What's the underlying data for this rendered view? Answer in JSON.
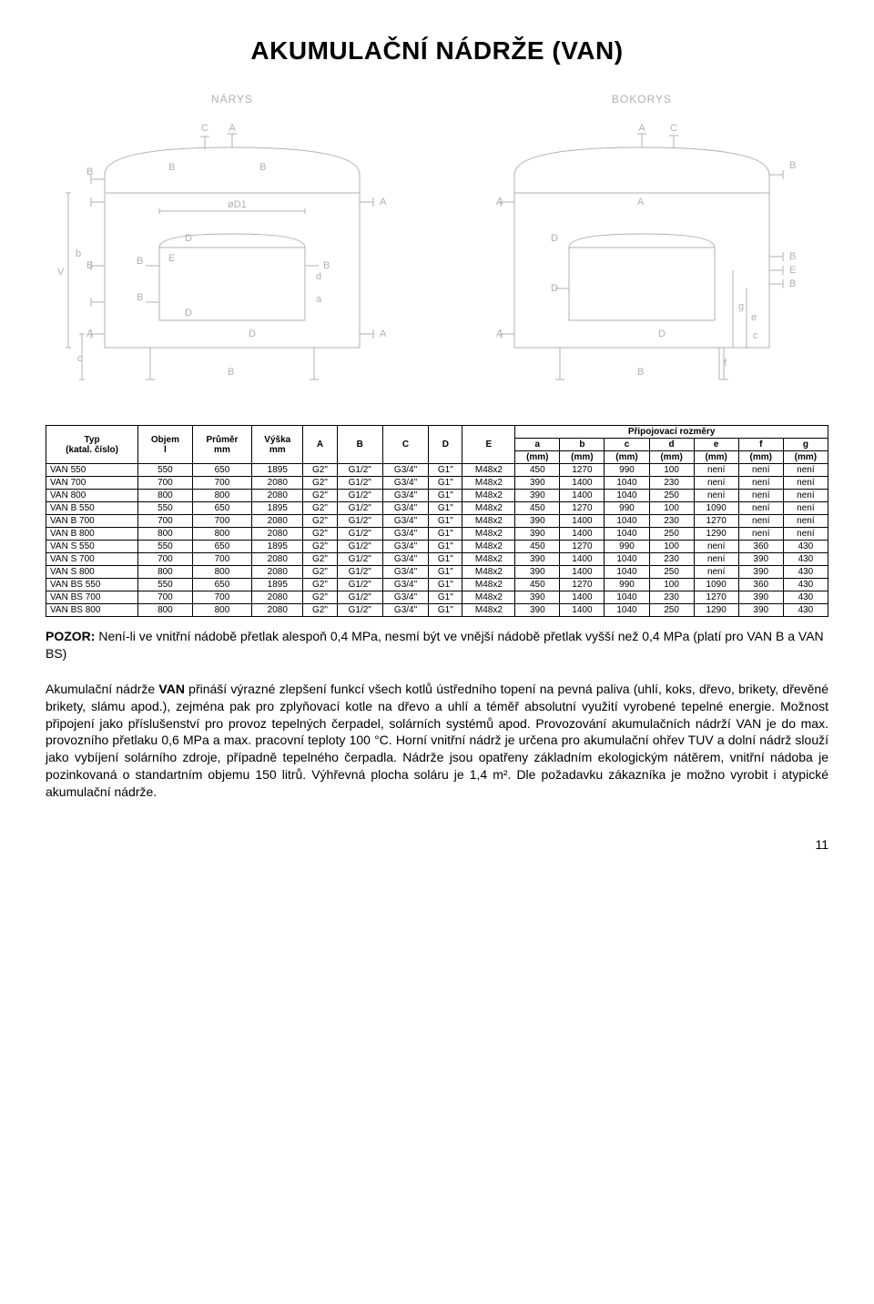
{
  "title": "AKUMULAČNÍ NÁDRŽE (VAN)",
  "diagrams": {
    "left_label": "NÁRYS",
    "right_label": "BOKORYS",
    "stroke": "#b0b0b0",
    "letter_color": "#b0b0b0"
  },
  "table": {
    "header_group": "Připojovací rozměry",
    "cols_top": [
      "Typ\n(katal. číslo)",
      "Objem\nl",
      "Průměr\nmm",
      "Výška\nmm",
      "A",
      "B",
      "C",
      "D",
      "E"
    ],
    "subcols": [
      {
        "k": "a",
        "u": "(mm)"
      },
      {
        "k": "b",
        "u": "(mm)"
      },
      {
        "k": "c",
        "u": "(mm)"
      },
      {
        "k": "d",
        "u": "(mm)"
      },
      {
        "k": "e",
        "u": "(mm)"
      },
      {
        "k": "f",
        "u": "(mm)"
      },
      {
        "k": "g",
        "u": "(mm)"
      }
    ],
    "rows": [
      [
        "VAN 550",
        "550",
        "650",
        "1895",
        "G2\"",
        "G1/2\"",
        "G3/4\"",
        "G1\"",
        "M48x2",
        "450",
        "1270",
        "990",
        "100",
        "není",
        "není",
        "není"
      ],
      [
        "VAN 700",
        "700",
        "700",
        "2080",
        "G2\"",
        "G1/2\"",
        "G3/4\"",
        "G1\"",
        "M48x2",
        "390",
        "1400",
        "1040",
        "230",
        "není",
        "není",
        "není"
      ],
      [
        "VAN 800",
        "800",
        "800",
        "2080",
        "G2\"",
        "G1/2\"",
        "G3/4\"",
        "G1\"",
        "M48x2",
        "390",
        "1400",
        "1040",
        "250",
        "není",
        "není",
        "není"
      ],
      [
        "VAN B 550",
        "550",
        "650",
        "1895",
        "G2\"",
        "G1/2\"",
        "G3/4\"",
        "G1\"",
        "M48x2",
        "450",
        "1270",
        "990",
        "100",
        "1090",
        "není",
        "není"
      ],
      [
        "VAN B 700",
        "700",
        "700",
        "2080",
        "G2\"",
        "G1/2\"",
        "G3/4\"",
        "G1\"",
        "M48x2",
        "390",
        "1400",
        "1040",
        "230",
        "1270",
        "není",
        "není"
      ],
      [
        "VAN B 800",
        "800",
        "800",
        "2080",
        "G2\"",
        "G1/2\"",
        "G3/4\"",
        "G1\"",
        "M48x2",
        "390",
        "1400",
        "1040",
        "250",
        "1290",
        "není",
        "není"
      ],
      [
        "VAN S 550",
        "550",
        "650",
        "1895",
        "G2\"",
        "G1/2\"",
        "G3/4\"",
        "G1\"",
        "M48x2",
        "450",
        "1270",
        "990",
        "100",
        "není",
        "360",
        "430"
      ],
      [
        "VAN S 700",
        "700",
        "700",
        "2080",
        "G2\"",
        "G1/2\"",
        "G3/4\"",
        "G1\"",
        "M48x2",
        "390",
        "1400",
        "1040",
        "230",
        "není",
        "390",
        "430"
      ],
      [
        "VAN S 800",
        "800",
        "800",
        "2080",
        "G2\"",
        "G1/2\"",
        "G3/4\"",
        "G1\"",
        "M48x2",
        "390",
        "1400",
        "1040",
        "250",
        "není",
        "390",
        "430"
      ],
      [
        "VAN BS 550",
        "550",
        "650",
        "1895",
        "G2\"",
        "G1/2\"",
        "G3/4\"",
        "G1\"",
        "M48x2",
        "450",
        "1270",
        "990",
        "100",
        "1090",
        "360",
        "430"
      ],
      [
        "VAN BS 700",
        "700",
        "700",
        "2080",
        "G2\"",
        "G1/2\"",
        "G3/4\"",
        "G1\"",
        "M48x2",
        "390",
        "1400",
        "1040",
        "230",
        "1270",
        "390",
        "430"
      ],
      [
        "VAN BS 800",
        "800",
        "800",
        "2080",
        "G2\"",
        "G1/2\"",
        "G3/4\"",
        "G1\"",
        "M48x2",
        "390",
        "1400",
        "1040",
        "250",
        "1290",
        "390",
        "430"
      ]
    ]
  },
  "pozor_label": "POZOR:",
  "pozor_text": " Není-li ve vnitřní nádobě přetlak alespoň 0,4 MPa, nesmí být ve vnější nádobě přetlak vyšší než 0,4 MPa (platí pro VAN B a VAN BS)",
  "body_1a": "Akumulační nádrže ",
  "body_1b": "VAN",
  "body_1c": " přináší výrazné zlepšení funkcí všech kotlů ústředního topení na pevná paliva (uhlí, koks, dřevo, brikety, dřevěné brikety, slámu apod.), zejména pak pro zplyňovací kotle na dřevo a uhlí a téměř absolutní využití vyrobené tepelné energie. Možnost připojení jako příslušenství pro provoz tepelných čerpadel, solárních systémů apod. Provozování akumulačních nádrží VAN je do max. provozního přetlaku 0,6 MPa a max. pracovní teploty 100 °C. Horní vnitřní nádrž je určena pro akumulační ohřev TUV a dolní nádrž slouží jako vybíjení solárního zdroje, případně tepelného čerpadla. Nádrže jsou opatřeny základním ekologickým nátěrem, vnitřní nádoba je pozinkovaná o standartním objemu 150 litrů. Výhřevná plocha soláru je 1,4 m². Dle požadavku zákazníka je možno vyrobit i atypické akumulační nádrže.",
  "page_number": "11"
}
